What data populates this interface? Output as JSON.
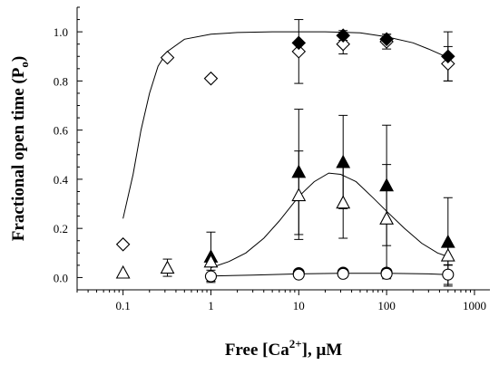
{
  "chart_data": {
    "type": "scatter",
    "xscale": "log",
    "xlim": [
      0.03,
      1500
    ],
    "ylim": [
      -0.05,
      1.1
    ],
    "x_ticks": [
      0.1,
      1,
      10,
      100,
      1000
    ],
    "x_tick_labels": [
      "0.1",
      "1",
      "10",
      "100",
      "1000"
    ],
    "y_ticks": [
      0.0,
      0.2,
      0.4,
      0.6,
      0.8,
      1.0
    ],
    "y_tick_labels": [
      "0.0",
      "0.2",
      "0.4",
      "0.6",
      "0.8",
      "1.0"
    ],
    "xlabel": {
      "prefix": "Free [Ca",
      "sup": "2+",
      "suffix": "], μM"
    },
    "ylabel": {
      "prefix": "Fractional open time (P",
      "sub": "o",
      "suffix": ")"
    },
    "grid": false,
    "legend": "none",
    "series": [
      {
        "marker": "diamond-open",
        "points": [
          {
            "x": 0.1,
            "y": 0.135
          },
          {
            "x": 0.32,
            "y": 0.895
          },
          {
            "x": 1,
            "y": 0.81
          },
          {
            "x": 10,
            "y": 0.92,
            "err": 0.13
          },
          {
            "x": 32,
            "y": 0.95,
            "err": 0.04
          },
          {
            "x": 100,
            "y": 0.96,
            "err": 0.03
          },
          {
            "x": 500,
            "y": 0.87,
            "err": 0.07
          }
        ]
      },
      {
        "marker": "diamond-filled",
        "points": [
          {
            "x": 10,
            "y": 0.955
          },
          {
            "x": 32,
            "y": 0.985,
            "err": 0.02
          },
          {
            "x": 100,
            "y": 0.97,
            "err": 0.02
          },
          {
            "x": 500,
            "y": 0.9,
            "err": 0.1
          }
        ]
      },
      {
        "marker": "triangle-filled",
        "points": [
          {
            "x": 1,
            "y": 0.085,
            "err": 0.1
          },
          {
            "x": 10,
            "y": 0.43,
            "err": 0.255
          },
          {
            "x": 32,
            "y": 0.47,
            "err": 0.19
          },
          {
            "x": 100,
            "y": 0.375,
            "err": 0.245
          },
          {
            "x": 500,
            "y": 0.145,
            "err": 0.18
          }
        ]
      },
      {
        "marker": "triangle-open",
        "points": [
          {
            "x": 0.1,
            "y": 0.02
          },
          {
            "x": 0.32,
            "y": 0.04,
            "err": 0.035
          },
          {
            "x": 1,
            "y": 0.065
          },
          {
            "x": 10,
            "y": 0.335,
            "err": 0.18
          },
          {
            "x": 32,
            "y": 0.305,
            "err": 0.145
          },
          {
            "x": 100,
            "y": 0.24,
            "err": 0.22
          },
          {
            "x": 500,
            "y": 0.09,
            "err": 0.04
          }
        ]
      },
      {
        "marker": "circle-filled",
        "points": [
          {
            "x": 10,
            "y": 0.018
          },
          {
            "x": 32,
            "y": 0.02
          },
          {
            "x": 100,
            "y": 0.02
          }
        ]
      },
      {
        "marker": "circle-open",
        "points": [
          {
            "x": 1,
            "y": 0.005,
            "err": 0.025
          },
          {
            "x": 10,
            "y": 0.012,
            "err": 0.01
          },
          {
            "x": 32,
            "y": 0.015,
            "err": 0.01
          },
          {
            "x": 100,
            "y": 0.015,
            "err": 0.02
          },
          {
            "x": 500,
            "y": 0.012,
            "err": 0.04
          }
        ]
      }
    ],
    "fits": [
      {
        "name_hidden": true,
        "points": [
          [
            0.1,
            0.24
          ],
          [
            0.13,
            0.42
          ],
          [
            0.16,
            0.6
          ],
          [
            0.2,
            0.75
          ],
          [
            0.25,
            0.86
          ],
          [
            0.32,
            0.92
          ],
          [
            0.5,
            0.97
          ],
          [
            1,
            0.99
          ],
          [
            2,
            0.997
          ],
          [
            5,
            1.0
          ],
          [
            20,
            1.0
          ],
          [
            50,
            0.996
          ],
          [
            100,
            0.98
          ],
          [
            200,
            0.955
          ],
          [
            300,
            0.93
          ],
          [
            500,
            0.895
          ]
        ]
      },
      {
        "points": [
          [
            1,
            0.04
          ],
          [
            1.6,
            0.065
          ],
          [
            2.5,
            0.1
          ],
          [
            4,
            0.16
          ],
          [
            6,
            0.23
          ],
          [
            10,
            0.33
          ],
          [
            15,
            0.39
          ],
          [
            22,
            0.425
          ],
          [
            30,
            0.42
          ],
          [
            45,
            0.39
          ],
          [
            70,
            0.325
          ],
          [
            100,
            0.27
          ],
          [
            160,
            0.2
          ],
          [
            250,
            0.14
          ],
          [
            380,
            0.1
          ],
          [
            500,
            0.085
          ]
        ]
      },
      {
        "points": [
          [
            1,
            0.006
          ],
          [
            3,
            0.01
          ],
          [
            10,
            0.015
          ],
          [
            30,
            0.017
          ],
          [
            100,
            0.017
          ],
          [
            300,
            0.015
          ],
          [
            500,
            0.012
          ]
        ]
      }
    ]
  }
}
